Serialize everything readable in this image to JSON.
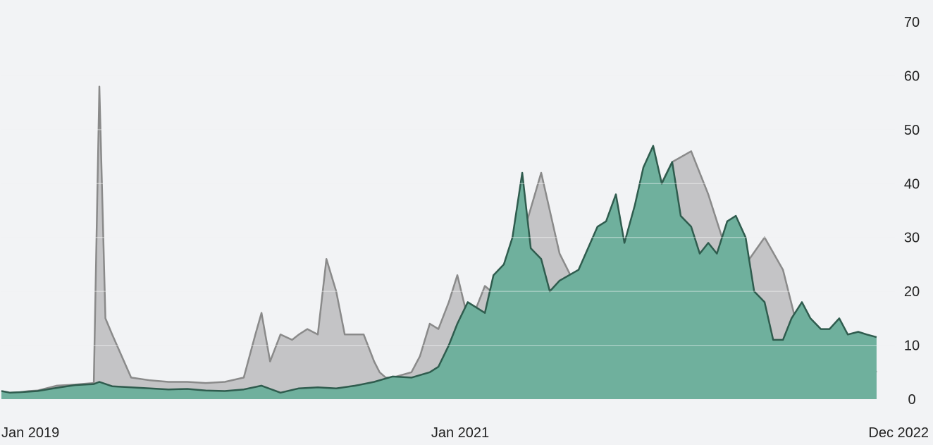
{
  "chart_data": {
    "type": "area",
    "title": "",
    "xlabel": "",
    "ylabel": "",
    "x_ticks": [
      "Jan 2019",
      "Jan 2021",
      "Dec 2022"
    ],
    "x_range": [
      "2019-01",
      "2022-12"
    ],
    "y_ticks": [
      0,
      10,
      20,
      30,
      40,
      50,
      60,
      70
    ],
    "ylim": [
      0,
      70
    ],
    "grid": "horizontal",
    "legend": "none",
    "colors": {
      "gray_fill": "#c4c4c6",
      "gray_line": "#8a8a8a",
      "green_fill": "#6fb09d",
      "green_line": "#2f5c4e",
      "grid": "#e2e4e8",
      "background": "#f2f3f5"
    },
    "series": [
      {
        "x": [
          "2019-01-01",
          "2019-01-15",
          "2019-02-01",
          "2019-02-15",
          "2019-03-01",
          "2019-04-01",
          "2019-05-01",
          "2019-06-01",
          "2019-06-10",
          "2019-06-20",
          "2019-07-01",
          "2019-08-01",
          "2019-09-01",
          "2019-10-01",
          "2019-11-01",
          "2019-12-01",
          "2020-01-01",
          "2020-02-01",
          "2020-02-20",
          "2020-03-01",
          "2020-03-15",
          "2020-04-01",
          "2020-04-20",
          "2020-05-01",
          "2020-05-15",
          "2020-06-01",
          "2020-06-15",
          "2020-07-01",
          "2020-07-15",
          "2020-08-01",
          "2020-08-15",
          "2020-09-01",
          "2020-09-10",
          "2020-09-20",
          "2020-10-01",
          "2020-11-01",
          "2020-11-15",
          "2020-12-01",
          "2020-12-15",
          "2021-01-01",
          "2021-01-15",
          "2021-02-01",
          "2021-02-15",
          "2021-03-01",
          "2021-04-01",
          "2021-05-01",
          "2021-06-01",
          "2021-07-01",
          "2021-08-01",
          "2021-09-01",
          "2021-10-01",
          "2021-11-01",
          "2021-12-01",
          "2022-01-01",
          "2022-02-01",
          "2022-03-01",
          "2022-04-01",
          "2022-05-01",
          "2022-06-01",
          "2022-07-01",
          "2022-08-01",
          "2022-09-01",
          "2022-10-01",
          "2022-11-01",
          "2022-12-01"
        ],
        "values": [
          1.5,
          1.2,
          1.3,
          1.5,
          1.6,
          2.5,
          2.7,
          3,
          58,
          15,
          12,
          4,
          3.5,
          3.2,
          3.2,
          3,
          3.2,
          4,
          12,
          16,
          7,
          12,
          11,
          12,
          13,
          12,
          26,
          20,
          12,
          12,
          12,
          7,
          5,
          4,
          4,
          5,
          8,
          14,
          13,
          18,
          23,
          15,
          17,
          21,
          18,
          30,
          42,
          27,
          20,
          22,
          23,
          32,
          37,
          44,
          46,
          38,
          27,
          25,
          30,
          24,
          10,
          8,
          12,
          9,
          5
        ],
        "fill": "gray"
      },
      {
        "x": [
          "2019-01-01",
          "2019-01-15",
          "2019-02-01",
          "2019-03-01",
          "2019-04-01",
          "2019-05-01",
          "2019-06-01",
          "2019-06-10",
          "2019-07-01",
          "2019-08-01",
          "2019-09-01",
          "2019-10-01",
          "2019-11-01",
          "2019-12-01",
          "2020-01-01",
          "2020-02-01",
          "2020-03-01",
          "2020-04-01",
          "2020-05-01",
          "2020-06-01",
          "2020-07-01",
          "2020-08-01",
          "2020-09-01",
          "2020-10-01",
          "2020-11-01",
          "2020-12-01",
          "2020-12-15",
          "2021-01-01",
          "2021-01-15",
          "2021-02-01",
          "2021-02-15",
          "2021-03-01",
          "2021-03-15",
          "2021-04-01",
          "2021-04-15",
          "2021-05-01",
          "2021-05-15",
          "2021-06-01",
          "2021-06-15",
          "2021-07-01",
          "2021-08-01",
          "2021-09-01",
          "2021-09-15",
          "2021-10-01",
          "2021-10-15",
          "2021-11-01",
          "2021-11-15",
          "2021-12-01",
          "2021-12-15",
          "2022-01-01",
          "2022-01-15",
          "2022-02-01",
          "2022-02-15",
          "2022-03-01",
          "2022-03-15",
          "2022-04-01",
          "2022-04-15",
          "2022-05-01",
          "2022-05-15",
          "2022-06-01",
          "2022-06-15",
          "2022-07-01",
          "2022-07-15",
          "2022-08-01",
          "2022-08-15",
          "2022-09-01",
          "2022-09-15",
          "2022-10-01",
          "2022-10-15",
          "2022-11-01",
          "2022-11-15",
          "2022-12-01"
        ],
        "values": [
          1.5,
          1.2,
          1.3,
          1.5,
          2.1,
          2.6,
          2.8,
          3.2,
          2.4,
          2.2,
          2.0,
          1.8,
          1.9,
          1.6,
          1.5,
          1.8,
          2.5,
          1.2,
          2.0,
          2.2,
          2.0,
          2.5,
          3.2,
          4.2,
          4.0,
          5.0,
          6.0,
          10,
          14,
          18,
          17,
          16,
          23,
          25,
          30,
          42,
          28,
          26,
          20,
          22,
          24,
          32,
          33,
          38,
          29,
          36,
          43,
          47,
          40,
          44,
          34,
          32,
          27,
          29,
          27,
          33,
          34,
          30,
          20,
          18,
          11,
          11,
          15,
          18,
          15,
          13,
          13,
          15,
          12,
          12.5,
          12,
          11.5
        ],
        "fill": "green"
      }
    ]
  }
}
